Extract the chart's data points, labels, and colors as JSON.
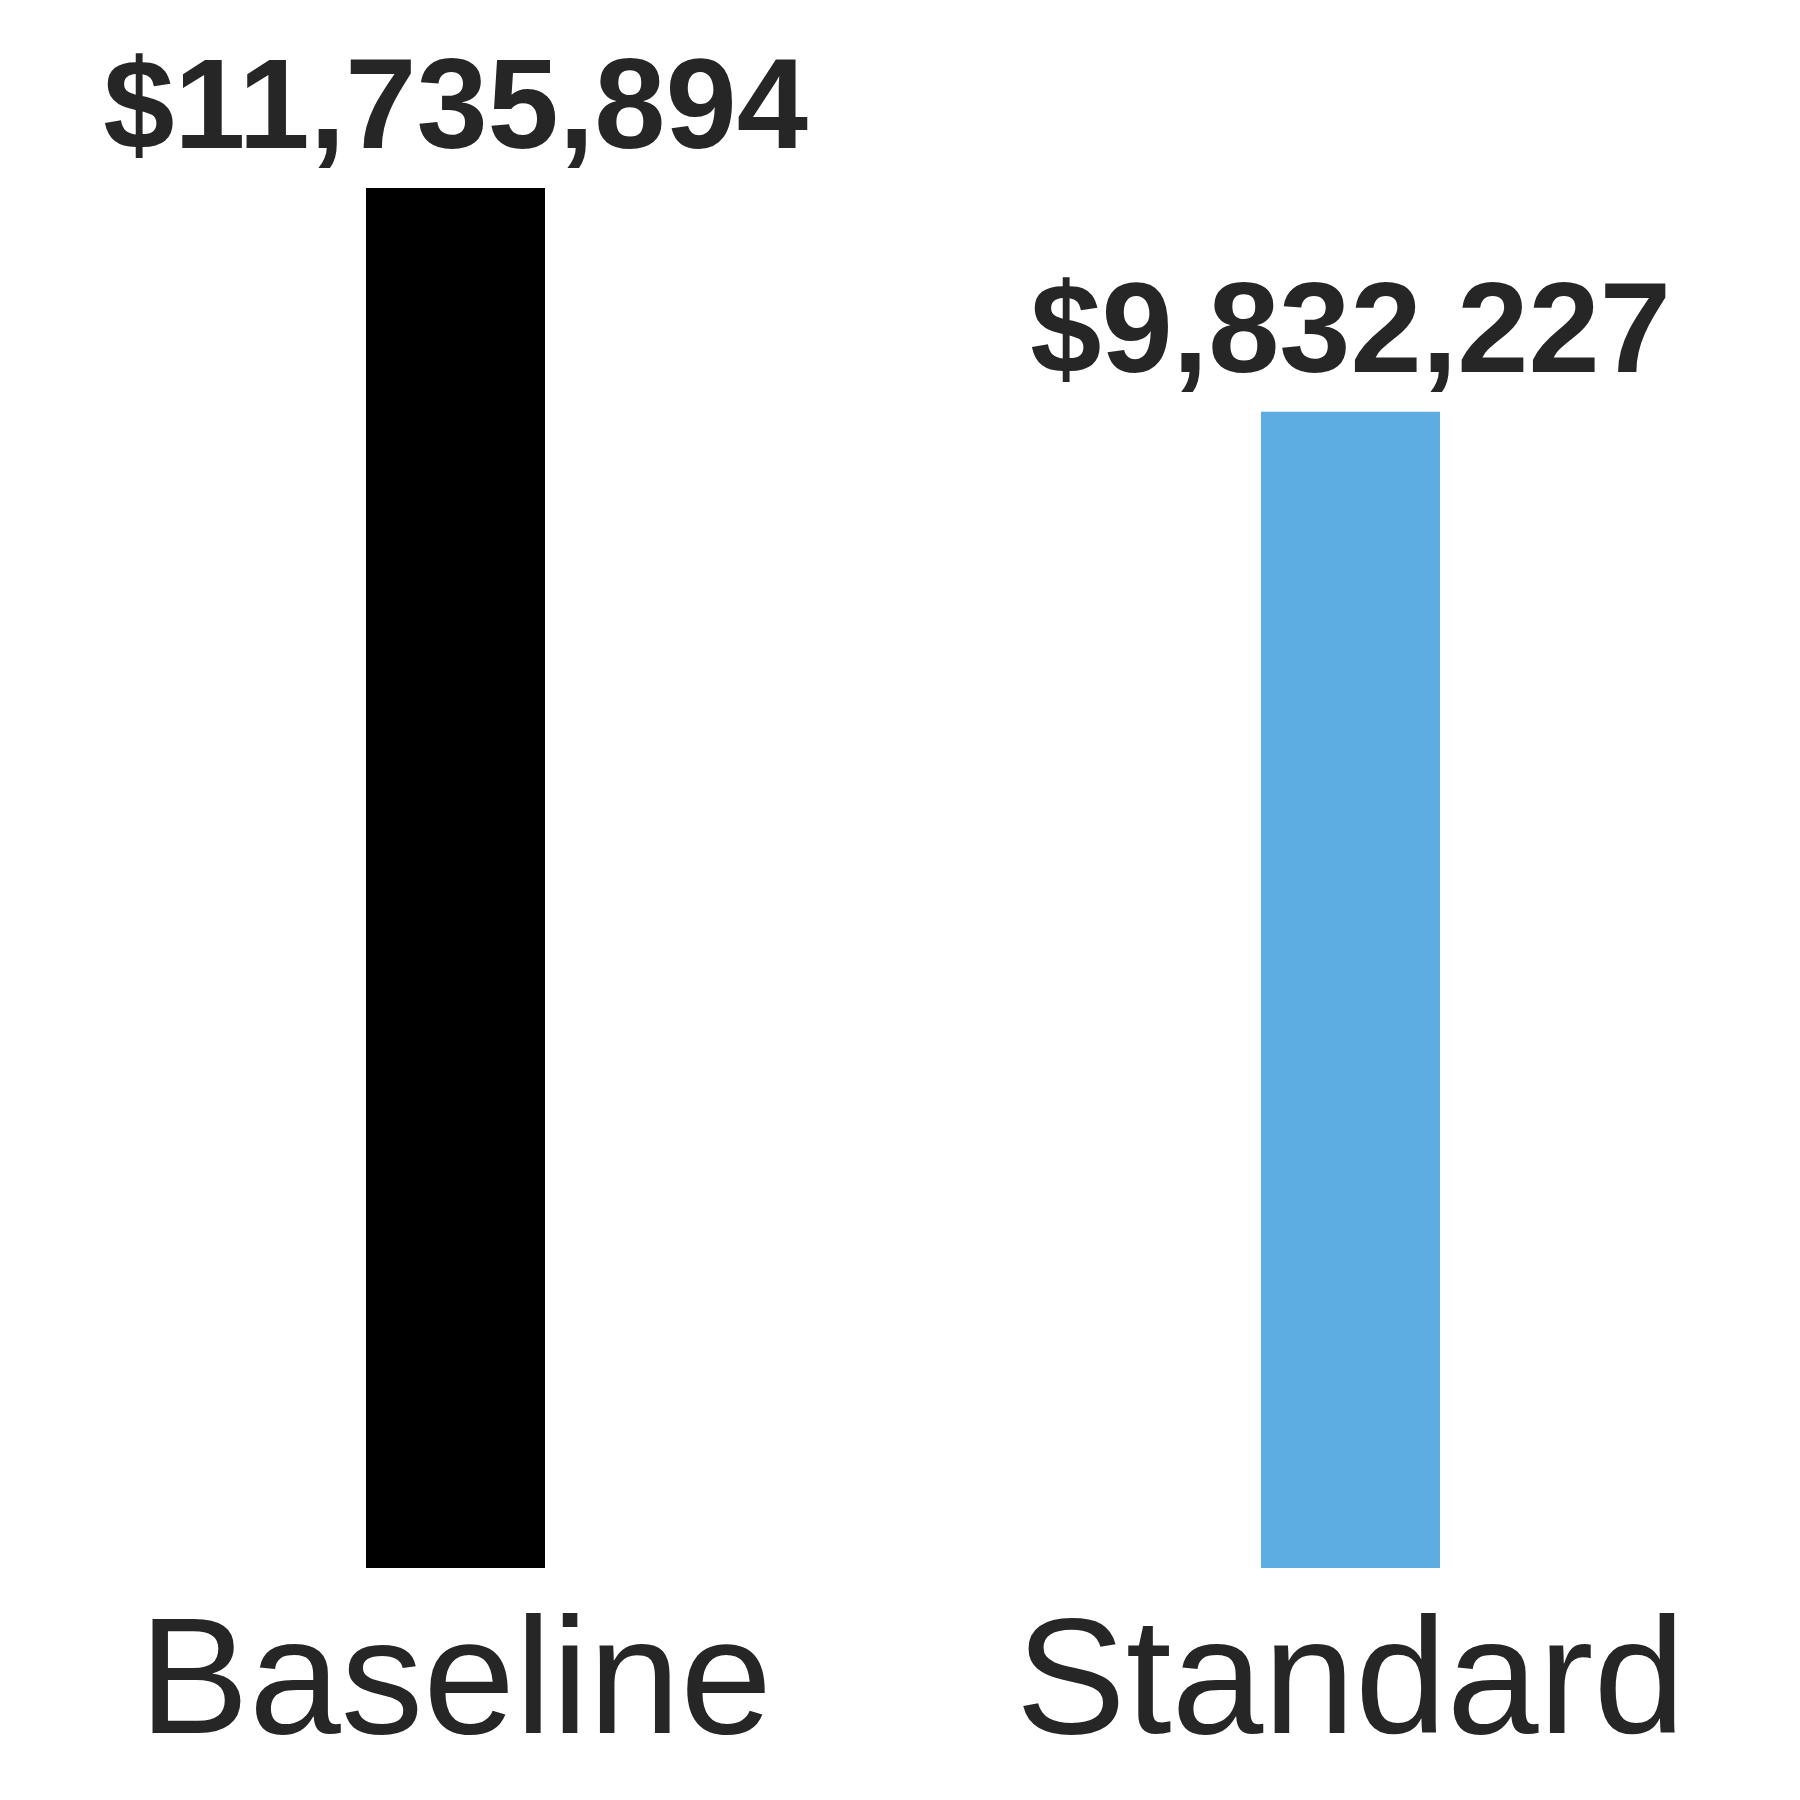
{
  "chart_data": {
    "type": "bar",
    "categories": [
      "Baseline",
      "Standard"
    ],
    "values": [
      11735894,
      9832227
    ],
    "colors": [
      "#000000",
      "#5dade2"
    ],
    "value_labels": [
      "$11,735,894",
      "$9,832,227"
    ]
  }
}
